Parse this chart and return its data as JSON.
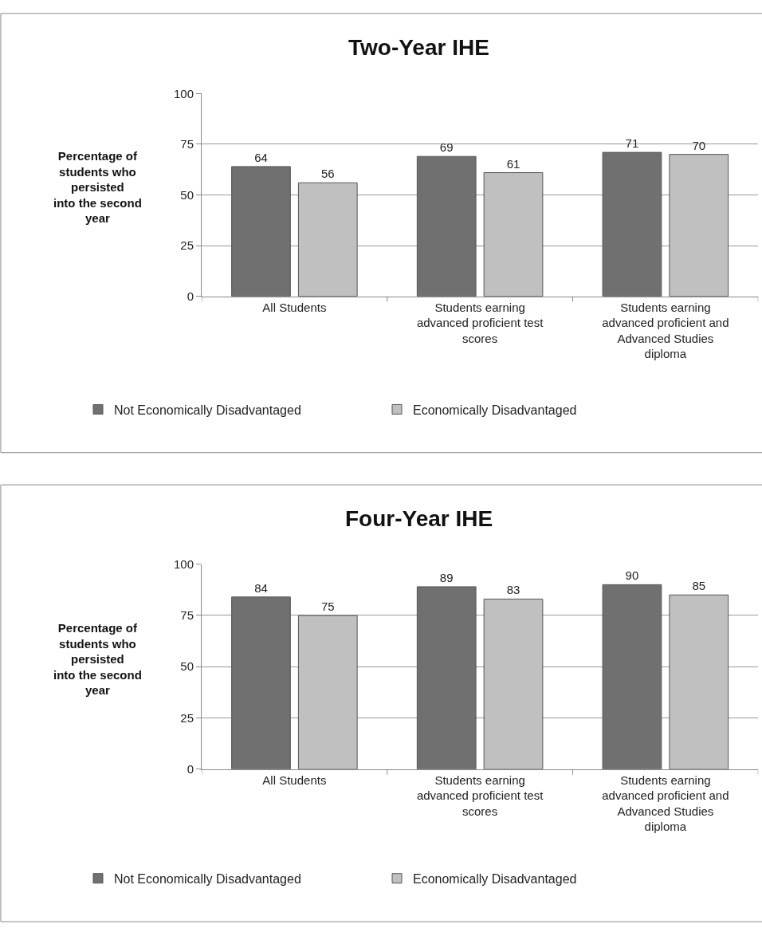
{
  "chart_data": [
    {
      "type": "bar",
      "title": "Two-Year IHE",
      "ylabel": "Percentage of\nstudents who\npersisted\ninto the second\nyear",
      "categories": [
        "All Students",
        "Students earning\nadvanced proficient test\nscores",
        "Students earning\nadvanced proficient and\nAdvanced Studies\ndiploma"
      ],
      "series": [
        {
          "name": "Not Economically Disadvantaged",
          "color": "#707070",
          "values": [
            64,
            69,
            71
          ]
        },
        {
          "name": "Economically Disadvantaged",
          "color": "#c0c0c0",
          "values": [
            56,
            61,
            70
          ]
        }
      ],
      "ylim": [
        0,
        100
      ],
      "yticks": [
        0,
        25,
        50,
        75,
        100
      ],
      "grid": "y",
      "legend": "bottom",
      "data_labels": true
    },
    {
      "type": "bar",
      "title": "Four-Year IHE",
      "ylabel": "Percentage of\nstudents who\npersisted\ninto the second\nyear",
      "categories": [
        "All Students",
        "Students earning\nadvanced proficient test\nscores",
        "Students earning\nadvanced proficient and\nAdvanced Studies\ndiploma"
      ],
      "series": [
        {
          "name": "Not Economically Disadvantaged",
          "color": "#707070",
          "values": [
            84,
            89,
            90
          ]
        },
        {
          "name": "Economically Disadvantaged",
          "color": "#c0c0c0",
          "values": [
            75,
            83,
            85
          ]
        }
      ],
      "ylim": [
        0,
        100
      ],
      "yticks": [
        0,
        25,
        50,
        75,
        100
      ],
      "grid": "y",
      "legend": "bottom",
      "data_labels": true
    }
  ]
}
